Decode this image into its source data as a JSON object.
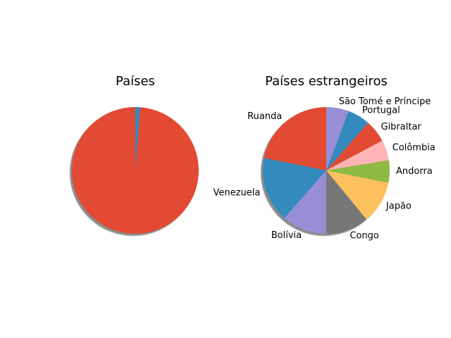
{
  "chart_data": [
    {
      "type": "pie",
      "title": "Países",
      "shadow": true,
      "start_angle_deg": 90,
      "direction": "counterclockwise",
      "slices": [
        {
          "label": "",
          "value": 98.8,
          "color": "#E24A33"
        },
        {
          "label": "",
          "value": 1.2,
          "color": "#348ABD"
        }
      ]
    },
    {
      "type": "pie",
      "title": "Países estrangeiros",
      "shadow": true,
      "start_angle_deg": 90,
      "direction": "counterclockwise",
      "slices": [
        {
          "label": "Ruanda",
          "value": 21,
          "color": "#E24A33"
        },
        {
          "label": "Venezuela",
          "value": 16,
          "color": "#348ABD"
        },
        {
          "label": "Bolívia",
          "value": 11,
          "color": "#988ED5"
        },
        {
          "label": "Congo",
          "value": 10.5,
          "color": "#777777"
        },
        {
          "label": "Japão",
          "value": 10.5,
          "color": "#FBC15E"
        },
        {
          "label": "Andorra",
          "value": 5.5,
          "color": "#8EBA42"
        },
        {
          "label": "Colômbia",
          "value": 5,
          "color": "#FFB5B8"
        },
        {
          "label": "Gibraltar",
          "value": 5.5,
          "color": "#E24A33"
        },
        {
          "label": "Portugal",
          "value": 5.5,
          "color": "#348ABD"
        },
        {
          "label": "São Tomé e Príncipe",
          "value": 5.5,
          "color": "#988ED5"
        }
      ]
    }
  ]
}
